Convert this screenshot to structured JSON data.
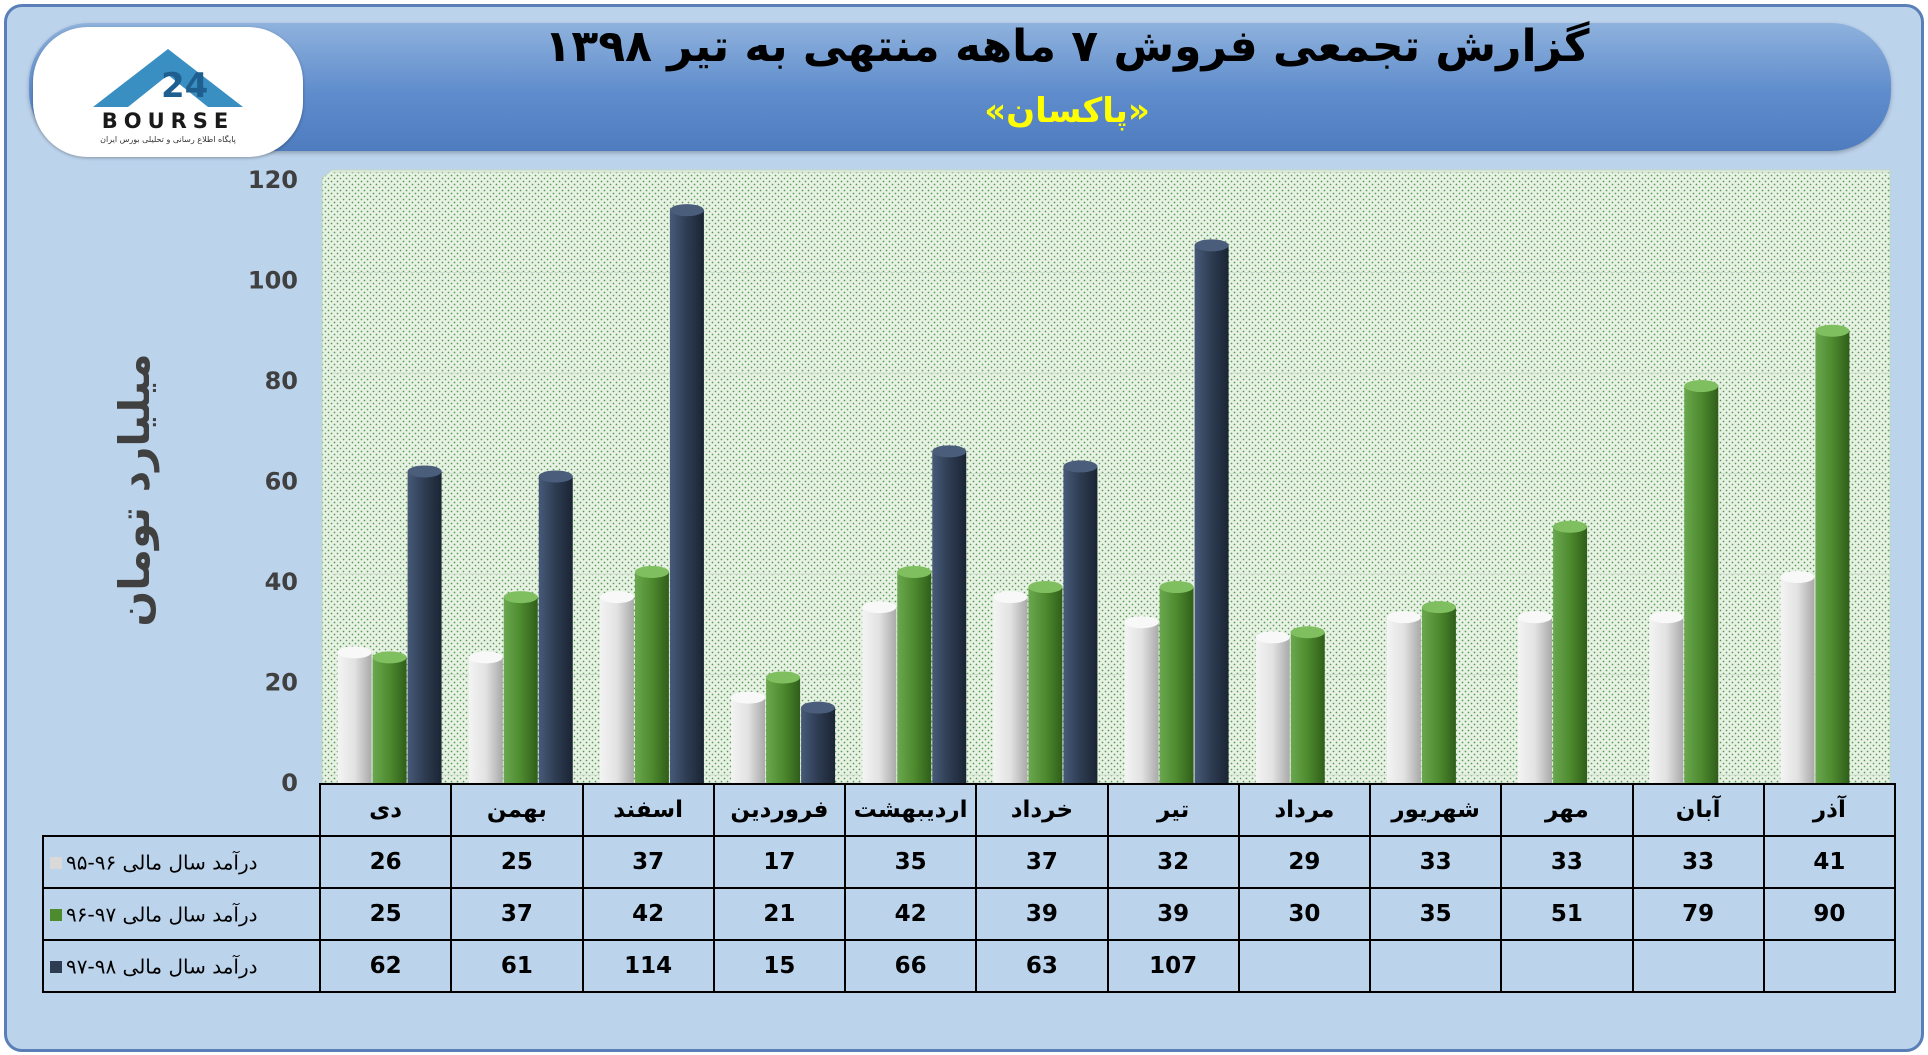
{
  "header": {
    "title": "گزارش تجمعی فروش ۷ ماهه منتهی به تیر ۱۳۹۸",
    "subtitle": "«پاکسان»",
    "logo_text": "BOURSE",
    "logo_subtitle": "پایگاه اطلاع رسانی و تحلیلی بورس ایران"
  },
  "colors": {
    "series_1": "#d9d9d9",
    "series_2": "#4e8a2e",
    "series_3": "#2e3c52"
  },
  "chart_data": {
    "type": "bar",
    "ylabel": "میلیارد تومان",
    "ylim": [
      0,
      120
    ],
    "yticks": [
      0,
      20,
      40,
      60,
      80,
      100,
      120
    ],
    "grid": true,
    "categories": [
      "دی",
      "بهمن",
      "اسفند",
      "فروردین",
      "اردیبهشت",
      "خرداد",
      "تیر",
      "مرداد",
      "شهریور",
      "مهر",
      "آبان",
      "آذر"
    ],
    "series": [
      {
        "name": "درآمد سال مالی ۹۶-۹۵",
        "values": [
          26,
          25,
          37,
          17,
          35,
          37,
          32,
          29,
          33,
          33,
          33,
          41
        ]
      },
      {
        "name": "درآمد سال مالی ۹۷-۹۶",
        "values": [
          25,
          37,
          42,
          21,
          42,
          39,
          39,
          30,
          35,
          51,
          79,
          90
        ]
      },
      {
        "name": "درآمد سال مالی ۹۸-۹۷",
        "values": [
          62,
          61,
          114,
          15,
          66,
          63,
          107,
          null,
          null,
          null,
          null,
          null
        ]
      }
    ]
  }
}
